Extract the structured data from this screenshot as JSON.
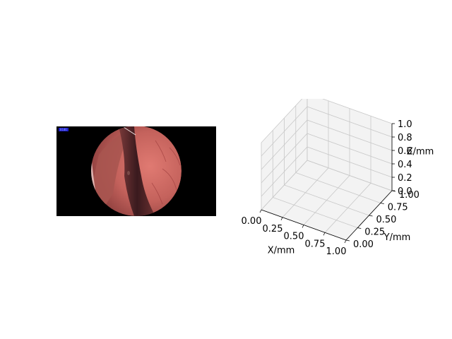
{
  "endoscope": {
    "overlay_label": "0106",
    "colors": {
      "tissue": "#c86a64",
      "dark": "#4a2226",
      "background": "#000000",
      "badge": "#1c1cc8"
    }
  },
  "chart_data": {
    "type": "scatter",
    "projection": "3d",
    "series": [],
    "xlabel": "X/mm",
    "ylabel": "Y/mm",
    "zlabel": "Z/mm",
    "xlim": [
      0,
      1
    ],
    "ylim": [
      0,
      1
    ],
    "zlim": [
      0,
      1
    ],
    "xticks": [
      "0.00",
      "0.25",
      "0.50",
      "0.75",
      "1.00"
    ],
    "yticks": [
      "0.00",
      "0.25",
      "0.50",
      "0.75",
      "1.00"
    ],
    "zticks": [
      "0.0",
      "0.2",
      "0.4",
      "0.6",
      "0.8",
      "1.0"
    ],
    "grid": true,
    "pane_color": "#f2f2f2",
    "grid_color": "#c8c8c8"
  }
}
